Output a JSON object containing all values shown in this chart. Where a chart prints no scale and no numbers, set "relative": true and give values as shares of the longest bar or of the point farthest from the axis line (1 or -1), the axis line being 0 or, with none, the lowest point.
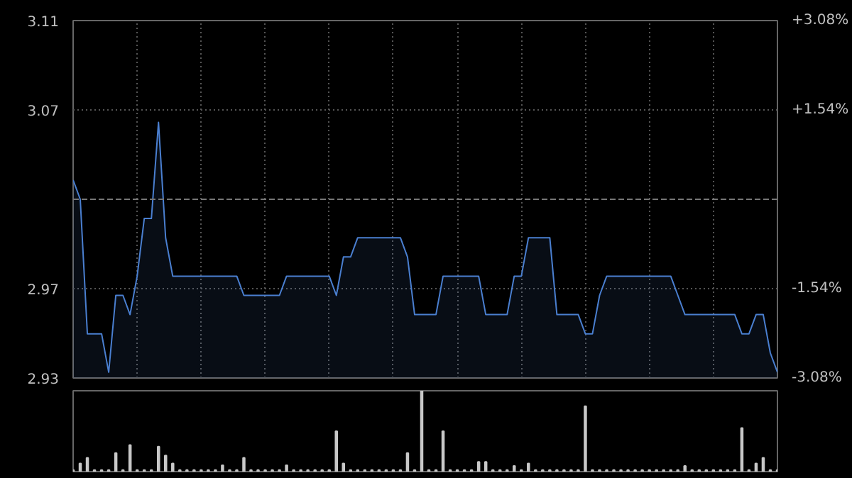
{
  "chart_data": [
    {
      "type": "area",
      "categories": [
        null,
        null,
        null,
        null,
        null,
        null,
        null,
        null,
        null,
        null,
        null,
        null,
        null,
        null,
        null,
        null,
        null,
        null,
        null,
        null,
        null,
        null,
        null,
        null,
        null,
        null,
        null,
        null,
        null,
        null,
        null,
        null,
        null,
        null,
        null,
        null,
        null,
        null,
        null,
        null,
        null,
        null,
        null,
        null,
        null,
        null,
        null,
        null,
        null,
        null,
        null,
        null,
        null,
        null,
        null,
        null,
        null,
        null,
        null,
        null,
        null,
        null,
        null,
        null,
        null,
        null,
        null,
        null,
        null,
        null,
        null,
        null,
        null,
        null,
        null,
        null,
        null,
        null,
        null,
        null,
        null,
        null,
        null,
        null,
        null,
        null,
        null,
        null,
        null,
        null,
        null,
        null,
        null,
        null,
        null,
        null,
        null,
        null,
        null,
        null
      ],
      "series": [
        {
          "color": "#4a7fd0",
          "values": [
            3.03,
            3.02,
            2.95,
            2.95,
            2.95,
            2.93,
            2.97,
            2.97,
            2.96,
            2.98,
            3.01,
            3.01,
            3.06,
            3.0,
            2.98,
            2.98,
            2.98,
            2.98,
            2.98,
            2.98,
            2.98,
            2.98,
            2.98,
            2.98,
            2.97,
            2.97,
            2.97,
            2.97,
            2.97,
            2.97,
            2.98,
            2.98,
            2.98,
            2.98,
            2.98,
            2.98,
            2.98,
            2.97,
            2.99,
            2.99,
            3.0,
            3.0,
            3.0,
            3.0,
            3.0,
            3.0,
            3.0,
            2.99,
            2.96,
            2.96,
            2.96,
            2.96,
            2.98,
            2.98,
            2.98,
            2.98,
            2.98,
            2.98,
            2.96,
            2.96,
            2.96,
            2.96,
            2.98,
            2.98,
            3.0,
            3.0,
            3.0,
            3.0,
            2.96,
            2.96,
            2.96,
            2.96,
            2.95,
            2.95,
            2.97,
            2.98,
            2.98,
            2.98,
            2.98,
            2.98,
            2.98,
            2.98,
            2.98,
            2.98,
            2.98,
            2.97,
            2.96,
            2.96,
            2.96,
            2.96,
            2.96,
            2.96,
            2.96,
            2.96,
            2.95,
            2.95,
            2.96,
            2.96,
            2.94,
            2.93
          ]
        }
      ],
      "ylim": [
        2.927,
        3.113
      ],
      "yticks": [
        {
          "value": 2.927,
          "label": "2.93"
        },
        {
          "value": 2.9735,
          "label": "2.97"
        },
        {
          "value": 3.0665,
          "label": "3.07"
        },
        {
          "value": 3.113,
          "label": "3.11"
        }
      ],
      "y2lim": [
        -3.08,
        3.08
      ],
      "y2ticks": [
        {
          "value": -3.08,
          "label": "-3.08%"
        },
        {
          "value": -1.54,
          "label": "-1.54%"
        },
        {
          "value": 1.54,
          "label": "+1.54%"
        },
        {
          "value": 3.08,
          "label": "+3.08%"
        }
      ],
      "ref_lines": [
        {
          "axis": "y",
          "value": 3.02,
          "line_style": "dashed"
        }
      ],
      "grid": true
    },
    {
      "type": "bar",
      "relative": true,
      "categories": [
        null,
        null,
        null,
        null,
        null,
        null,
        null,
        null,
        null,
        null,
        null,
        null,
        null,
        null,
        null,
        null,
        null,
        null,
        null,
        null,
        null,
        null,
        null,
        null,
        null,
        null,
        null,
        null,
        null,
        null,
        null,
        null,
        null,
        null,
        null,
        null,
        null,
        null,
        null,
        null,
        null,
        null,
        null,
        null,
        null,
        null,
        null,
        null,
        null,
        null,
        null,
        null,
        null,
        null,
        null,
        null,
        null,
        null,
        null,
        null,
        null,
        null,
        null,
        null,
        null,
        null,
        null,
        null,
        null,
        null,
        null,
        null,
        null,
        null,
        null,
        null,
        null,
        null,
        null,
        null,
        null,
        null,
        null,
        null,
        null,
        null,
        null,
        null,
        null,
        null,
        null,
        null,
        null,
        null,
        null,
        null,
        null,
        null,
        null,
        null
      ],
      "values": [
        0.02,
        0.1,
        0.17,
        0.02,
        0.02,
        0.02,
        0.23,
        0.02,
        0.33,
        0.02,
        0.02,
        0.02,
        0.31,
        0.2,
        0.1,
        0.02,
        0.02,
        0.02,
        0.02,
        0.02,
        0.02,
        0.08,
        0.02,
        0.02,
        0.17,
        0.02,
        0.02,
        0.02,
        0.02,
        0.02,
        0.08,
        0.02,
        0.02,
        0.02,
        0.02,
        0.02,
        0.02,
        0.5,
        0.1,
        0.02,
        0.02,
        0.02,
        0.02,
        0.02,
        0.02,
        0.02,
        0.02,
        0.23,
        0.02,
        1.0,
        0.02,
        0.02,
        0.5,
        0.02,
        0.02,
        0.02,
        0.02,
        0.12,
        0.12,
        0.02,
        0.02,
        0.02,
        0.07,
        0.02,
        0.1,
        0.02,
        0.02,
        0.02,
        0.02,
        0.02,
        0.02,
        0.02,
        0.81,
        0.02,
        0.02,
        0.02,
        0.02,
        0.02,
        0.02,
        0.02,
        0.02,
        0.02,
        0.02,
        0.02,
        0.02,
        0.02,
        0.07,
        0.02,
        0.02,
        0.02,
        0.02,
        0.02,
        0.02,
        0.02,
        0.54,
        0.02,
        0.1,
        0.17,
        0.02,
        0.02
      ],
      "color": "#c8c8c8"
    }
  ]
}
